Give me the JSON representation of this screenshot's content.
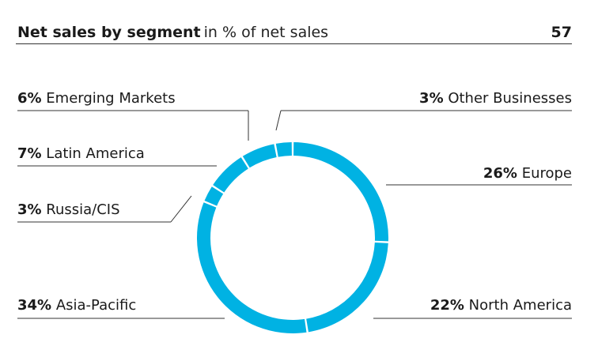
{
  "header": {
    "title": "Net sales by segment",
    "subtitle": "in % of net sales",
    "page_number": "57"
  },
  "colors": {
    "slice": "#00b2e3",
    "line": "#333333",
    "text": "#1a1a1a"
  },
  "chart_data": {
    "type": "pie",
    "variant": "donut",
    "title": "Net sales by segment",
    "subtitle": "in % of net sales",
    "unit": "%",
    "slices": [
      {
        "label": "Europe",
        "value": 26,
        "value_label": "26%"
      },
      {
        "label": "North America",
        "value": 22,
        "value_label": "22%"
      },
      {
        "label": "Asia-Pacific",
        "value": 34,
        "value_label": "34%"
      },
      {
        "label": "Russia/CIS",
        "value": 3,
        "value_label": "3%"
      },
      {
        "label": "Latin America",
        "value": 7,
        "value_label": "7%"
      },
      {
        "label": "Emerging Markets",
        "value": 6,
        "value_label": "6%"
      },
      {
        "label": "Other Businesses",
        "value": 3,
        "value_label": "3%"
      }
    ]
  }
}
